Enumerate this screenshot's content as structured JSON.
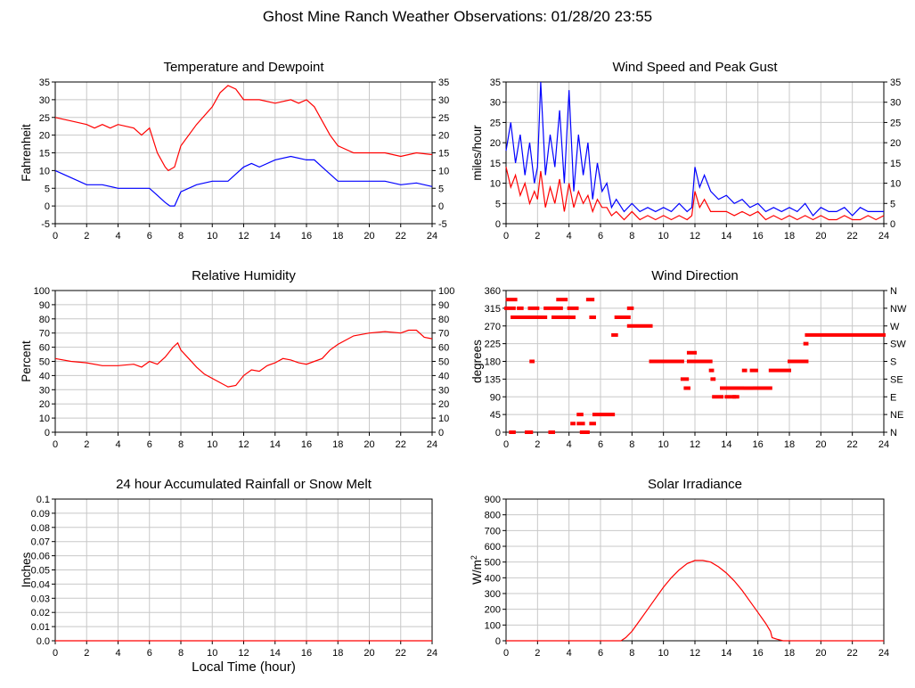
{
  "title": "Ghost Mine Ranch Weather Observations: 01/28/20 23:55",
  "colors": {
    "red": "#ff0000",
    "blue": "#0000ff",
    "grid": "#c8c8c8"
  },
  "chart_data": [
    {
      "id": "temp",
      "type": "line",
      "title": "Temperature and Dewpoint",
      "ylabel": "Fahrenheit",
      "xlabel": "",
      "xlim": [
        0,
        24
      ],
      "ylim": [
        -5,
        35
      ],
      "yticks": [
        "-5",
        "0",
        "5",
        "10",
        "15",
        "20",
        "25",
        "30",
        "35"
      ],
      "right_ticks": [
        "-5",
        "0",
        "5",
        "10",
        "15",
        "20",
        "25",
        "30",
        "35"
      ],
      "xticks": [
        "0",
        "2",
        "4",
        "6",
        "8",
        "10",
        "12",
        "14",
        "16",
        "18",
        "20",
        "22",
        "24"
      ],
      "grid": true,
      "series": [
        {
          "color": "#ff0000",
          "x": [
            0,
            1,
            2,
            2.5,
            3,
            3.5,
            4,
            5,
            5.5,
            6,
            6.5,
            7,
            7.2,
            7.6,
            8,
            9,
            10,
            10.5,
            11,
            11.5,
            12,
            13,
            14,
            15,
            15.5,
            16,
            16.5,
            17,
            17.5,
            18,
            19,
            20,
            21,
            22,
            23,
            24
          ],
          "y": [
            25,
            24,
            23,
            22,
            23,
            22,
            23,
            22,
            20,
            22,
            15,
            11,
            10,
            11,
            17,
            23,
            28,
            32,
            34,
            33,
            30,
            30,
            29,
            30,
            29,
            30,
            28,
            24,
            20,
            17,
            15,
            15,
            15,
            14,
            15,
            14.5
          ]
        },
        {
          "color": "#0000ff",
          "x": [
            0,
            1,
            2,
            3,
            4,
            5,
            6,
            6.5,
            7,
            7.3,
            7.6,
            8,
            9,
            10,
            11,
            11.5,
            12,
            12.5,
            13,
            14,
            15,
            16,
            16.5,
            17,
            18,
            19,
            20,
            21,
            22,
            23,
            24
          ],
          "y": [
            10,
            8,
            6,
            6,
            5,
            5,
            5,
            3,
            1,
            0,
            0,
            4,
            6,
            7,
            7,
            9,
            11,
            12,
            11,
            13,
            14,
            13,
            13,
            11,
            7,
            7,
            7,
            7,
            6,
            6.5,
            5.5
          ]
        }
      ]
    },
    {
      "id": "wind",
      "type": "line",
      "title": "Wind Speed and Peak Gust",
      "ylabel": "miles/hour",
      "xlabel": "",
      "xlim": [
        0,
        24
      ],
      "ylim": [
        0,
        35
      ],
      "yticks": [
        "0",
        "5",
        "10",
        "15",
        "20",
        "25",
        "30",
        "35"
      ],
      "right_ticks": [
        "0",
        "5",
        "10",
        "15",
        "20",
        "25",
        "30",
        "35"
      ],
      "xticks": [
        "0",
        "2",
        "4",
        "6",
        "8",
        "10",
        "12",
        "14",
        "16",
        "18",
        "20",
        "22",
        "24"
      ],
      "grid": true,
      "series": [
        {
          "color": "#0000ff",
          "x": [
            0,
            0.3,
            0.6,
            0.9,
            1.2,
            1.5,
            1.8,
            2.0,
            2.2,
            2.5,
            2.8,
            3.1,
            3.4,
            3.7,
            4.0,
            4.3,
            4.6,
            4.9,
            5.2,
            5.5,
            5.8,
            6.1,
            6.4,
            6.7,
            7.0,
            7.5,
            8,
            8.5,
            9,
            9.5,
            10,
            10.5,
            11,
            11.5,
            11.8,
            12,
            12.3,
            12.6,
            13,
            13.5,
            14,
            14.5,
            15,
            15.5,
            16,
            16.5,
            17,
            17.5,
            18,
            18.5,
            19,
            19.5,
            20,
            20.5,
            21,
            21.5,
            22,
            22.5,
            23,
            23.5,
            24
          ],
          "y": [
            18,
            25,
            15,
            22,
            12,
            20,
            10,
            14,
            35,
            12,
            22,
            14,
            28,
            10,
            33,
            8,
            22,
            12,
            20,
            6,
            15,
            8,
            10,
            4,
            6,
            3,
            5,
            3,
            4,
            3,
            4,
            3,
            5,
            3,
            4,
            14,
            9,
            12,
            8,
            6,
            7,
            5,
            6,
            4,
            5,
            3,
            4,
            3,
            4,
            3,
            5,
            2,
            4,
            3,
            3,
            4,
            2,
            4,
            3,
            3,
            3
          ]
        },
        {
          "color": "#ff0000",
          "x": [
            0,
            0.3,
            0.6,
            0.9,
            1.2,
            1.5,
            1.8,
            2.0,
            2.2,
            2.5,
            2.8,
            3.1,
            3.4,
            3.7,
            4.0,
            4.3,
            4.6,
            4.9,
            5.2,
            5.5,
            5.8,
            6.1,
            6.4,
            6.7,
            7.0,
            7.5,
            8,
            8.5,
            9,
            9.5,
            10,
            10.5,
            11,
            11.5,
            11.8,
            12,
            12.3,
            12.6,
            13,
            13.5,
            14,
            14.5,
            15,
            15.5,
            16,
            16.5,
            17,
            17.5,
            18,
            18.5,
            19,
            19.5,
            20,
            20.5,
            21,
            21.5,
            22,
            22.5,
            23,
            23.5,
            24
          ],
          "y": [
            14,
            9,
            12,
            7,
            10,
            5,
            8,
            6,
            13,
            4,
            9,
            5,
            11,
            3,
            10,
            4,
            8,
            5,
            7,
            3,
            6,
            4,
            4,
            2,
            3,
            1,
            3,
            1,
            2,
            1,
            2,
            1,
            2,
            1,
            2,
            8,
            4,
            6,
            3,
            3,
            3,
            2,
            3,
            2,
            3,
            1,
            2,
            1,
            2,
            1,
            2,
            1,
            2,
            1,
            1,
            2,
            1,
            1,
            2,
            1,
            2
          ]
        }
      ]
    },
    {
      "id": "rh",
      "type": "line",
      "title": "Relative Humidity",
      "ylabel": "Percent",
      "xlabel": "",
      "xlim": [
        0,
        24
      ],
      "ylim": [
        0,
        100
      ],
      "yticks": [
        "0",
        "10",
        "20",
        "30",
        "40",
        "50",
        "60",
        "70",
        "80",
        "90",
        "100"
      ],
      "right_ticks": [
        "0",
        "10",
        "20",
        "30",
        "40",
        "50",
        "60",
        "70",
        "80",
        "90",
        "100"
      ],
      "xticks": [
        "0",
        "2",
        "4",
        "6",
        "8",
        "10",
        "12",
        "14",
        "16",
        "18",
        "20",
        "22",
        "24"
      ],
      "grid": true,
      "series": [
        {
          "color": "#ff0000",
          "x": [
            0,
            1,
            2,
            3,
            4,
            5,
            5.5,
            6,
            6.5,
            7,
            7.5,
            7.8,
            8,
            8.5,
            9,
            9.5,
            10,
            10.5,
            11,
            11.5,
            12,
            12.5,
            13,
            13.5,
            14,
            14.5,
            15,
            15.5,
            16,
            16.5,
            17,
            17.5,
            18,
            18.5,
            19,
            20,
            21,
            22,
            22.5,
            23,
            23.5,
            24
          ],
          "y": [
            52,
            50,
            49,
            47,
            47,
            48,
            46,
            50,
            48,
            53,
            60,
            63,
            58,
            52,
            46,
            41,
            38,
            35,
            32,
            33,
            40,
            44,
            43,
            47,
            49,
            52,
            51,
            49,
            48,
            50,
            52,
            58,
            62,
            65,
            68,
            70,
            71,
            70,
            72,
            72,
            67,
            66
          ]
        }
      ]
    },
    {
      "id": "dir",
      "type": "scatter",
      "title": "Wind Direction",
      "ylabel": "degrees",
      "xlabel": "",
      "xlim": [
        0,
        24
      ],
      "ylim": [
        0,
        360
      ],
      "yticks": [
        "0",
        "45",
        "90",
        "135",
        "180",
        "225",
        "270",
        "315",
        "360"
      ],
      "right_ticks": [
        "N",
        "NE",
        "E",
        "SE",
        "S",
        "SW",
        "W",
        "NW",
        "N"
      ],
      "xticks": [
        "0",
        "2",
        "4",
        "6",
        "8",
        "10",
        "12",
        "14",
        "16",
        "18",
        "20",
        "22",
        "24"
      ],
      "grid": true,
      "series": [
        {
          "color": "#ff0000",
          "segments": [
            [
              0,
              0.5,
              315
            ],
            [
              0.1,
              0.6,
              337
            ],
            [
              0.4,
              1.2,
              292
            ],
            [
              0.8,
              1.0,
              315
            ],
            [
              1.2,
              2.5,
              292
            ],
            [
              1.5,
              2.0,
              315
            ],
            [
              2.5,
              3.5,
              315
            ],
            [
              3.0,
              4.0,
              292
            ],
            [
              3.3,
              3.8,
              337
            ],
            [
              4.0,
              4.5,
              315
            ],
            [
              4.1,
              4.3,
              292
            ],
            [
              1.6,
              1.7,
              180
            ],
            [
              1.3,
              1.6,
              0
            ],
            [
              2.8,
              3.0,
              0
            ],
            [
              0.3,
              0.5,
              0
            ],
            [
              4.2,
              4.3,
              22
            ],
            [
              4.6,
              4.8,
              45
            ],
            [
              4.6,
              4.9,
              22
            ],
            [
              4.8,
              5.0,
              0
            ],
            [
              5.0,
              5.2,
              0
            ],
            [
              5.2,
              5.5,
              337
            ],
            [
              5.4,
              5.6,
              292
            ],
            [
              5.4,
              5.6,
              22
            ],
            [
              5.6,
              6.8,
              45
            ],
            [
              6.8,
              7.0,
              247
            ],
            [
              7.0,
              7.8,
              292
            ],
            [
              7.8,
              8.0,
              315
            ],
            [
              7.8,
              9.2,
              270
            ],
            [
              9.2,
              11.2,
              180
            ],
            [
              11.2,
              11.5,
              135
            ],
            [
              11.4,
              11.6,
              112
            ],
            [
              11.6,
              12.0,
              202
            ],
            [
              11.6,
              13.0,
              180
            ],
            [
              13.0,
              13.1,
              157
            ],
            [
              13.1,
              13.2,
              135
            ],
            [
              13.2,
              13.7,
              90
            ],
            [
              13.7,
              15.0,
              112
            ],
            [
              14.0,
              14.5,
              90
            ],
            [
              14.5,
              14.7,
              90
            ],
            [
              15.1,
              15.2,
              157
            ],
            [
              15.2,
              15.6,
              112
            ],
            [
              15.6,
              15.9,
              157
            ],
            [
              15.8,
              16.8,
              112
            ],
            [
              16.8,
              18.0,
              157
            ],
            [
              18.0,
              19.1,
              180
            ],
            [
              19.0,
              19.1,
              225
            ],
            [
              19.1,
              24.0,
              247
            ]
          ]
        }
      ]
    },
    {
      "id": "rain",
      "type": "line",
      "title": "24 hour Accumulated Rainfall or Snow Melt",
      "ylabel": "Inches",
      "xlabel": "Local Time (hour)",
      "xlim": [
        0,
        24
      ],
      "ylim": [
        0,
        0.1
      ],
      "yticks": [
        "0.0",
        "0.01",
        "0.02",
        "0.03",
        "0.04",
        "0.05",
        "0.06",
        "0.07",
        "0.08",
        "0.09",
        "0.1"
      ],
      "right_ticks": [],
      "xticks": [
        "0",
        "2",
        "4",
        "6",
        "8",
        "10",
        "12",
        "14",
        "16",
        "18",
        "20",
        "22",
        "24"
      ],
      "grid": true,
      "series": [
        {
          "color": "#ff0000",
          "x": [
            0,
            24
          ],
          "y": [
            0,
            0
          ]
        }
      ]
    },
    {
      "id": "solar",
      "type": "line",
      "title": "Solar Irradiance",
      "ylabel": "W/m",
      "ylabel_sup": "2",
      "xlabel": "",
      "xlim": [
        0,
        24
      ],
      "ylim": [
        0,
        900
      ],
      "yticks": [
        "0",
        "100",
        "200",
        "300",
        "400",
        "500",
        "600",
        "700",
        "800",
        "900"
      ],
      "right_ticks": [],
      "xticks": [
        "0",
        "2",
        "4",
        "6",
        "8",
        "10",
        "12",
        "14",
        "16",
        "18",
        "20",
        "22",
        "24"
      ],
      "grid": true,
      "series": [
        {
          "color": "#ff0000",
          "x": [
            0,
            7.3,
            7.6,
            8,
            8.5,
            9,
            9.5,
            10,
            10.5,
            11,
            11.5,
            12,
            12.5,
            13,
            13.5,
            14,
            14.5,
            15,
            15.5,
            16,
            16.5,
            16.8,
            16.9,
            17.2,
            17.6,
            18,
            24
          ],
          "y": [
            0,
            0,
            20,
            60,
            130,
            200,
            270,
            340,
            400,
            450,
            490,
            510,
            510,
            500,
            470,
            430,
            380,
            320,
            250,
            180,
            110,
            60,
            20,
            10,
            0,
            0,
            0
          ]
        }
      ]
    }
  ]
}
